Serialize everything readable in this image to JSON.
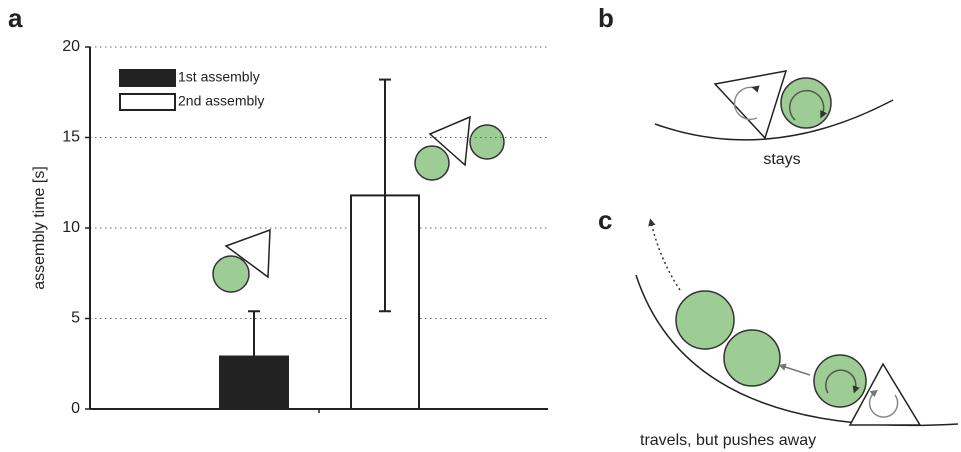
{
  "chart_data": {
    "type": "bar",
    "ylabel": "assembly time [s]",
    "categories": [
      null
    ],
    "series": [
      {
        "name": "1st assembly",
        "color": "#222222",
        "values": [
          2.9
        ],
        "errors": [
          2.5
        ]
      },
      {
        "name": "2nd assembly",
        "color": "#ffffff",
        "values": [
          11.8
        ],
        "errors": [
          6.4
        ]
      }
    ],
    "ylim": [
      0,
      20
    ],
    "yticks": [
      0,
      5,
      10,
      15,
      20
    ],
    "grid": true,
    "legend": "upper left"
  },
  "panels": {
    "a": "a",
    "b": "b",
    "c": "c",
    "b_caption": "stays",
    "c_caption": "travels, but pushes away"
  }
}
